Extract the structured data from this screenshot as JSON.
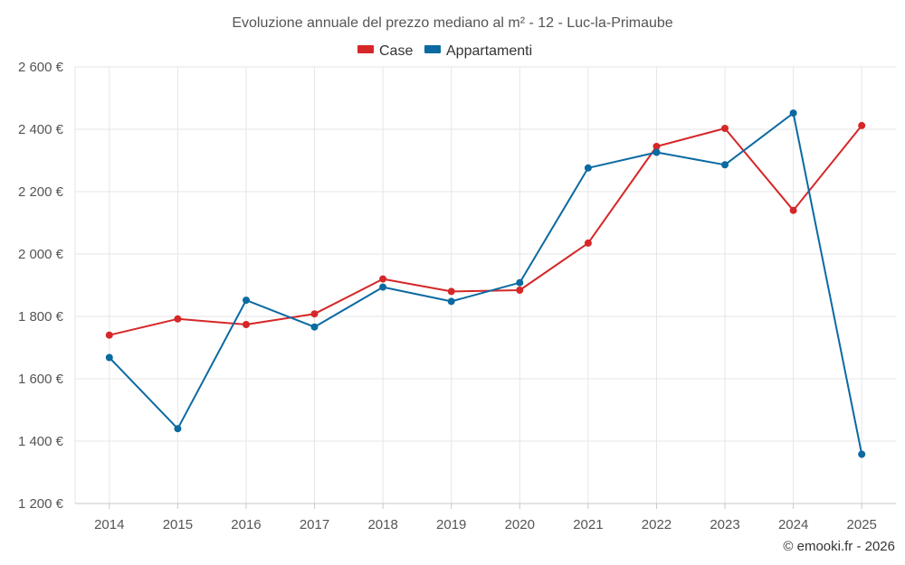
{
  "chart_data": {
    "type": "line",
    "title": "Evoluzione annuale del prezzo mediano al m² - 12 - Luc-la-Primaube",
    "xlabel": "",
    "ylabel": "",
    "categories": [
      "2014",
      "2015",
      "2016",
      "2017",
      "2018",
      "2019",
      "2020",
      "2021",
      "2022",
      "2023",
      "2024",
      "2025"
    ],
    "ylim": [
      1200,
      2600
    ],
    "yticks": [
      1200,
      1400,
      1600,
      1800,
      2000,
      2200,
      2400,
      2600
    ],
    "ytick_labels": [
      "1 200 €",
      "1 400 €",
      "1 600 €",
      "1 800 €",
      "2 000 €",
      "2 200 €",
      "2 400 €",
      "2 600 €"
    ],
    "grid": true,
    "legend_position": "top-center",
    "series": [
      {
        "name": "Case",
        "color": "#d62728",
        "values": [
          1740,
          1792,
          1774,
          1808,
          1920,
          1880,
          1884,
          2035,
          2345,
          2403,
          2140,
          2412
        ]
      },
      {
        "name": "Appartamenti",
        "color": "#0b6aa2",
        "values": [
          1668,
          1440,
          1852,
          1766,
          1894,
          1848,
          1908,
          2276,
          2326,
          2286,
          2452,
          1358
        ]
      }
    ]
  },
  "credit": "© emooki.fr - 2026"
}
